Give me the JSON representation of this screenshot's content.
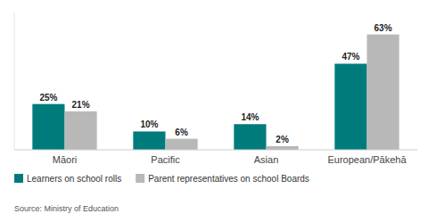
{
  "chart_data": {
    "type": "bar",
    "categories": [
      "Māori",
      "Pacific",
      "Asian",
      "European/Pākehā"
    ],
    "series": [
      {
        "name": "Learners on school rolls",
        "color": "#007b7b",
        "values": [
          25,
          10,
          14,
          47
        ],
        "value_labels": [
          "25%",
          "10%",
          "14%",
          "47%"
        ]
      },
      {
        "name": "Parent representatives on school Boards",
        "color": "#b8b8b8",
        "values": [
          21,
          6,
          2,
          63
        ],
        "value_labels": [
          "21%",
          "6%",
          "2%",
          "63%"
        ]
      }
    ],
    "ylim": [
      0,
      75
    ],
    "data_labels": true,
    "tick_labels": "x",
    "grid": false,
    "legend": "bottom",
    "annotation": "Source: Ministry of Education"
  }
}
